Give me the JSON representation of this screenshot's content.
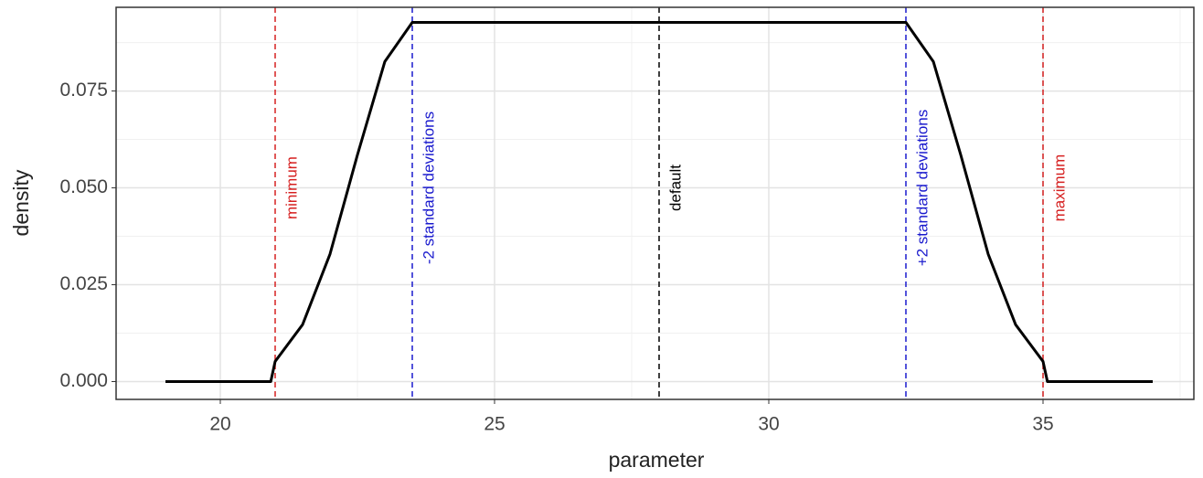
{
  "chart_data": {
    "type": "line",
    "x_label": "parameter",
    "y_label": "density",
    "x": [
      19,
      20.92,
      21,
      21.5,
      22,
      22.5,
      23,
      23.5,
      32.5,
      33,
      33.5,
      34,
      34.5,
      35,
      35.08,
      37
    ],
    "series": [
      {
        "color": "#000000",
        "values": [
          0,
          0,
          0.0052,
          0.0147,
          0.0329,
          0.0585,
          0.0826,
          0.0927,
          0.0927,
          0.0826,
          0.0585,
          0.0329,
          0.0147,
          0.0052,
          0,
          0
        ]
      }
    ],
    "vlines": [
      {
        "x": 21,
        "label": "minimum",
        "color": "#d62020"
      },
      {
        "x": 23.5,
        "label": "-2 standard deviations",
        "color": "#1a1acd"
      },
      {
        "x": 28,
        "label": "default",
        "color": "#000000"
      },
      {
        "x": 32.5,
        "label": "+2 standard deviations",
        "color": "#1a1acd"
      },
      {
        "x": 35,
        "label": "maximum",
        "color": "#d62020"
      }
    ],
    "xlim": [
      18.1,
      37.75
    ],
    "ylim": [
      -0.0046,
      0.0966
    ],
    "xticks": [
      20,
      25,
      30,
      35
    ],
    "yticks": [
      {
        "value": 0,
        "label": "0.000"
      },
      {
        "value": 0.025,
        "label": "0.025"
      },
      {
        "value": 0.05,
        "label": "0.050"
      },
      {
        "value": 0.075,
        "label": "0.075"
      }
    ],
    "grid": true
  }
}
